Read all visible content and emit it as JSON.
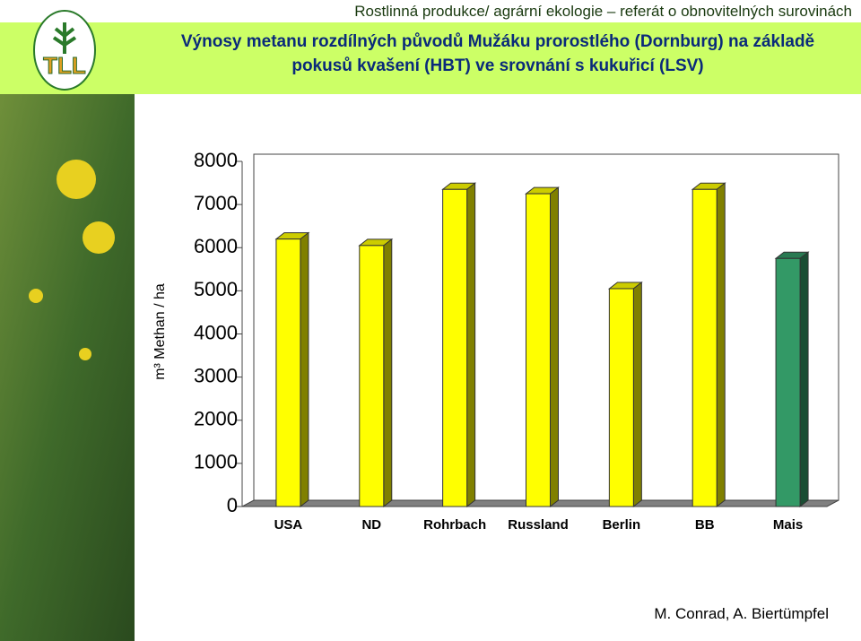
{
  "header": "Rostlinná produkce/ agrární ekologie – referát o obnovitelných surovinách",
  "logo": "TLL",
  "author": "M. Conrad, A. Biertümpfel",
  "chart_data": {
    "type": "bar",
    "title": "Výnosy metanu rozdílných původů Mužáku prorostlého (Dornburg) na základě pokusů kvašení (HBT) ve srovnání s kukuřicí (LSV)",
    "y_label": "m³ Methan / ha",
    "categories": [
      "USA",
      "ND",
      "Rohrbach",
      "Russland",
      "Berlin",
      "BB",
      "Mais"
    ],
    "values": [
      6200,
      6050,
      7350,
      7250,
      5050,
      7350,
      5750
    ],
    "colors": [
      "#ffff00",
      "#ffff00",
      "#ffff00",
      "#ffff00",
      "#ffff00",
      "#ffff00",
      "#339966"
    ],
    "ylim": [
      0,
      8000
    ],
    "yticks": [
      0,
      1000,
      2000,
      3000,
      4000,
      5000,
      6000,
      7000,
      8000
    ]
  }
}
